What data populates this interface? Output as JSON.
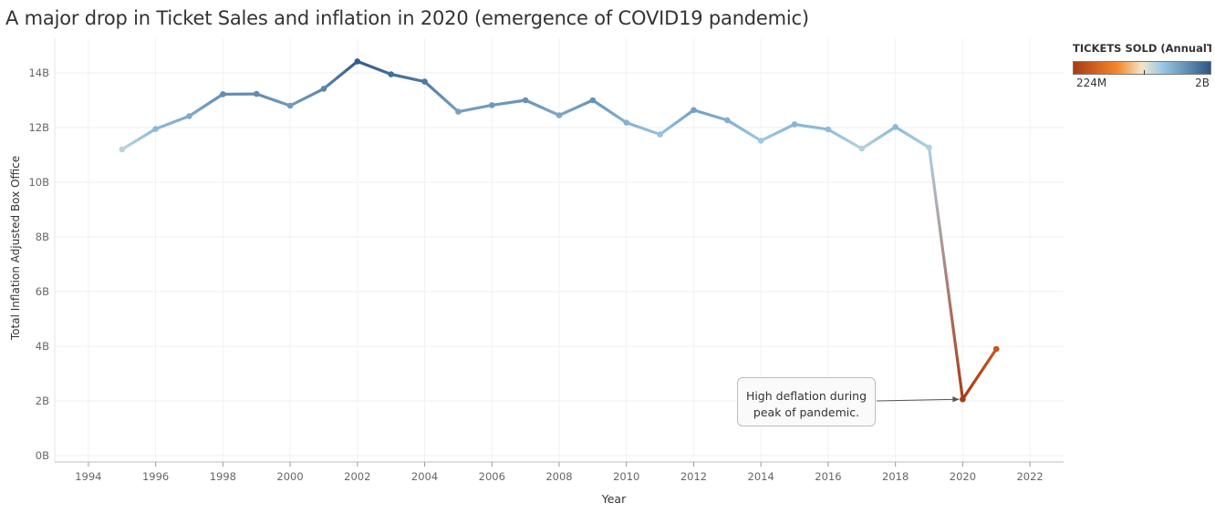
{
  "title": "A major drop in Ticket Sales and inflation in 2020 (emergence of COVID19 pandemic)",
  "legend": {
    "title": "TICKETS SOLD (AnnualTick..",
    "min_label": "224M",
    "max_label": "2B",
    "min_value": 224000000,
    "max_value": 2000000000
  },
  "annotation": {
    "line1": "High deflation during",
    "line2": "peak of pandemic.",
    "target_year": 2020
  },
  "chart_data": {
    "type": "line",
    "title": "A major drop in Ticket Sales and inflation in 2020 (emergence of COVID19 pandemic)",
    "xlabel": "Year",
    "ylabel": "Total Inflation Adjusted Box Office",
    "xlim": [
      1993,
      2023
    ],
    "ylim": [
      -0.3,
      14.6
    ],
    "x_ticks": [
      1994,
      1996,
      1998,
      2000,
      2002,
      2004,
      2006,
      2008,
      2010,
      2012,
      2014,
      2016,
      2018,
      2020,
      2022
    ],
    "y_ticks": [
      0,
      2,
      4,
      6,
      8,
      10,
      12,
      14
    ],
    "y_tick_labels": [
      "0B",
      "2B",
      "4B",
      "6B",
      "8B",
      "10B",
      "12B",
      "14B"
    ],
    "grid": true,
    "legend_position": "top-right",
    "series": [
      {
        "x": [
          1995,
          1996,
          1997,
          1998,
          1999,
          2000,
          2001,
          2002,
          2003,
          2004,
          2005,
          2006,
          2007,
          2008,
          2009,
          2010,
          2011,
          2012,
          2013,
          2014,
          2015,
          2016,
          2017,
          2018,
          2019,
          2020,
          2021
        ],
        "y": [
          11.2,
          11.95,
          12.42,
          13.22,
          13.23,
          12.8,
          13.42,
          14.42,
          13.95,
          13.68,
          12.58,
          12.82,
          13.0,
          12.45,
          13.0,
          12.18,
          11.75,
          12.64,
          12.27,
          11.52,
          12.12,
          11.93,
          11.23,
          12.02,
          11.27,
          2.06,
          3.9
        ],
        "tickets_sold": [
          1.21,
          1.31,
          1.35,
          1.44,
          1.44,
          1.4,
          1.46,
          1.58,
          1.53,
          1.5,
          1.38,
          1.4,
          1.42,
          1.36,
          1.42,
          1.33,
          1.28,
          1.38,
          1.34,
          1.26,
          1.32,
          1.3,
          1.22,
          1.31,
          1.23,
          0.224,
          0.42
        ]
      }
    ],
    "color_scale": {
      "type": "diverging",
      "low_color": "#a83b16",
      "mid_low_color": "#f5882c",
      "mid_color": "#f4e5c8",
      "mid_high_color": "#9ecae6",
      "high_color": "#2c5686"
    }
  }
}
